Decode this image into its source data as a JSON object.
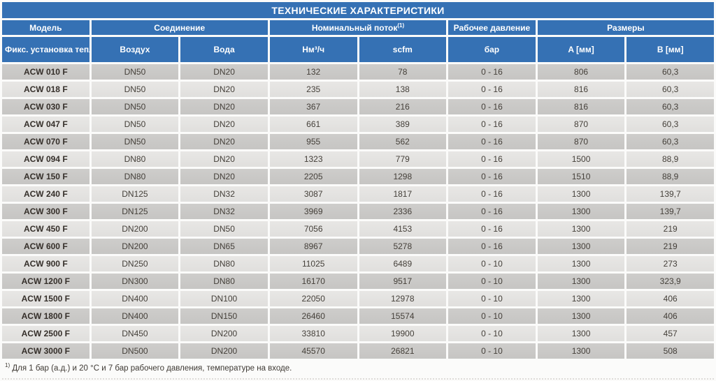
{
  "title": "ТЕХНИЧЕСКИЕ ХАРАКТЕРИСТИКИ",
  "colors": {
    "header_blue": "#3571b4",
    "row_dark_gray": "#c8c7c5",
    "row_light_gray": "#e4e3e1",
    "header_text": "#ffffff",
    "body_text": "#45403a"
  },
  "header": {
    "groups": [
      {
        "label": "Модель",
        "sup": ""
      },
      {
        "label": "Соединение",
        "sup": ""
      },
      {
        "label": "Номинальный поток",
        "sup": "(1)"
      },
      {
        "label": "Рабочее давление",
        "sup": ""
      },
      {
        "label": "Размеры",
        "sup": ""
      }
    ],
    "columns": [
      "Фикс. установка теплообменника",
      "Воздух",
      "Вода",
      "Нм³/ч",
      "scfm",
      "бар",
      "A [мм]",
      "B [мм]"
    ]
  },
  "rows": [
    {
      "model": "ACW 010 F",
      "air": "DN50",
      "water": "DN20",
      "nm3_h": "132",
      "scfm": "78",
      "pressure_bar": "0 - 16",
      "a_mm": "806",
      "b_mm": "60,3"
    },
    {
      "model": "ACW 018 F",
      "air": "DN50",
      "water": "DN20",
      "nm3_h": "235",
      "scfm": "138",
      "pressure_bar": "0 - 16",
      "a_mm": "816",
      "b_mm": "60,3"
    },
    {
      "model": "ACW 030 F",
      "air": "DN50",
      "water": "DN20",
      "nm3_h": "367",
      "scfm": "216",
      "pressure_bar": "0 - 16",
      "a_mm": "816",
      "b_mm": "60,3"
    },
    {
      "model": "ACW 047 F",
      "air": "DN50",
      "water": "DN20",
      "nm3_h": "661",
      "scfm": "389",
      "pressure_bar": "0 - 16",
      "a_mm": "870",
      "b_mm": "60,3"
    },
    {
      "model": "ACW 070 F",
      "air": "DN50",
      "water": "DN20",
      "nm3_h": "955",
      "scfm": "562",
      "pressure_bar": "0 - 16",
      "a_mm": "870",
      "b_mm": "60,3"
    },
    {
      "model": "ACW 094 F",
      "air": "DN80",
      "water": "DN20",
      "nm3_h": "1323",
      "scfm": "779",
      "pressure_bar": "0 - 16",
      "a_mm": "1500",
      "b_mm": "88,9"
    },
    {
      "model": "ACW 150 F",
      "air": "DN80",
      "water": "DN20",
      "nm3_h": "2205",
      "scfm": "1298",
      "pressure_bar": "0 - 16",
      "a_mm": "1510",
      "b_mm": "88,9"
    },
    {
      "model": "ACW 240 F",
      "air": "DN125",
      "water": "DN32",
      "nm3_h": "3087",
      "scfm": "1817",
      "pressure_bar": "0 - 16",
      "a_mm": "1300",
      "b_mm": "139,7"
    },
    {
      "model": "ACW 300 F",
      "air": "DN125",
      "water": "DN32",
      "nm3_h": "3969",
      "scfm": "2336",
      "pressure_bar": "0 - 16",
      "a_mm": "1300",
      "b_mm": "139,7"
    },
    {
      "model": "ACW 450 F",
      "air": "DN200",
      "water": "DN50",
      "nm3_h": "7056",
      "scfm": "4153",
      "pressure_bar": "0 - 16",
      "a_mm": "1300",
      "b_mm": "219"
    },
    {
      "model": "ACW 600 F",
      "air": "DN200",
      "water": "DN65",
      "nm3_h": "8967",
      "scfm": "5278",
      "pressure_bar": "0 - 16",
      "a_mm": "1300",
      "b_mm": "219"
    },
    {
      "model": "ACW 900 F",
      "air": "DN250",
      "water": "DN80",
      "nm3_h": "11025",
      "scfm": "6489",
      "pressure_bar": "0 - 10",
      "a_mm": "1300",
      "b_mm": "273"
    },
    {
      "model": "ACW 1200 F",
      "air": "DN300",
      "water": "DN80",
      "nm3_h": "16170",
      "scfm": "9517",
      "pressure_bar": "0 - 10",
      "a_mm": "1300",
      "b_mm": "323,9"
    },
    {
      "model": "ACW 1500 F",
      "air": "DN400",
      "water": "DN100",
      "nm3_h": "22050",
      "scfm": "12978",
      "pressure_bar": "0 - 10",
      "a_mm": "1300",
      "b_mm": "406"
    },
    {
      "model": "ACW 1800 F",
      "air": "DN400",
      "water": "DN150",
      "nm3_h": "26460",
      "scfm": "15574",
      "pressure_bar": "0 - 10",
      "a_mm": "1300",
      "b_mm": "406"
    },
    {
      "model": "ACW 2500 F",
      "air": "DN450",
      "water": "DN200",
      "nm3_h": "33810",
      "scfm": "19900",
      "pressure_bar": "0 - 10",
      "a_mm": "1300",
      "b_mm": "457"
    },
    {
      "model": "ACW 3000 F",
      "air": "DN500",
      "water": "DN200",
      "nm3_h": "45570",
      "scfm": "26821",
      "pressure_bar": "0 - 10",
      "a_mm": "1300",
      "b_mm": "508"
    }
  ],
  "footnote": {
    "sup": "1)",
    "text": "Для 1 бар (а.д.) и 20 °С и 7 бар рабочего давления, температуре на входе."
  }
}
